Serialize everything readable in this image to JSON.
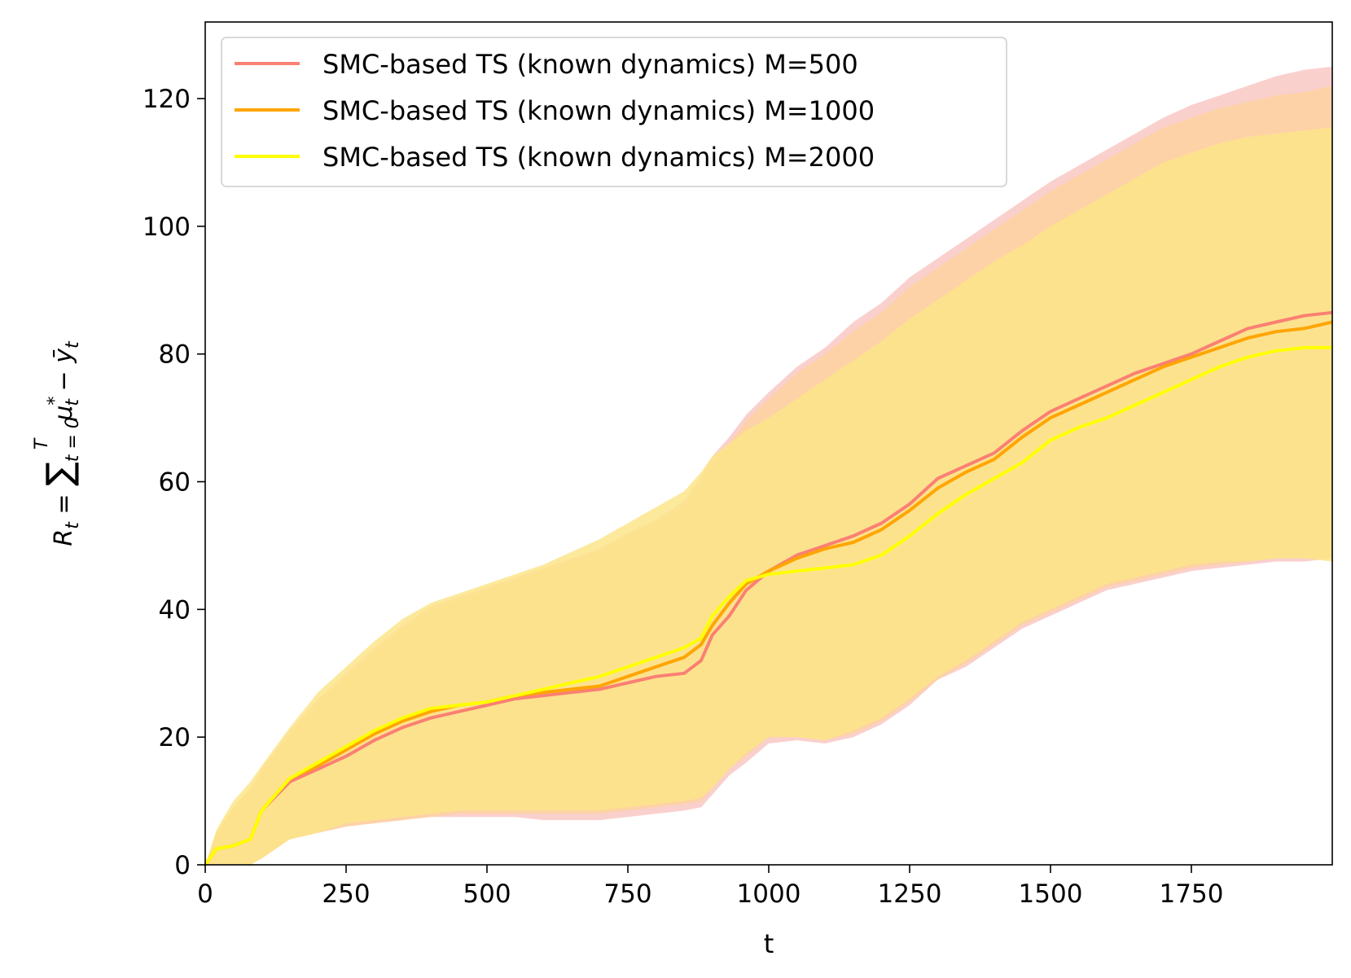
{
  "chart_data": {
    "type": "line",
    "title": "",
    "xlabel": "t",
    "ylabel": {
      "lhs": "R",
      "lhs_sub": "t",
      "eq": " = ",
      "sum": "∑",
      "sum_upper": "T",
      "sum_lower": "t = 0",
      "mu": "μ",
      "mu_sup": "*",
      "mu_sub": "t",
      "minus": " − ",
      "y": "ȳ",
      "y_sub": "t"
    },
    "xlim": [
      0,
      2000
    ],
    "ylim": [
      0,
      132
    ],
    "xticks": [
      0,
      250,
      500,
      750,
      1000,
      1250,
      1500,
      1750
    ],
    "yticks": [
      0,
      20,
      40,
      60,
      80,
      100,
      120
    ],
    "grid": false,
    "legend_position": "top-left",
    "series": [
      {
        "name": "SMC-based TS (known dynamics) M=500",
        "color": "#fa8072",
        "band_color": "#f9c8c4",
        "x": [
          0,
          20,
          50,
          80,
          100,
          150,
          200,
          250,
          300,
          350,
          400,
          450,
          500,
          550,
          600,
          650,
          700,
          750,
          800,
          850,
          880,
          900,
          930,
          960,
          1000,
          1050,
          1100,
          1150,
          1200,
          1250,
          1300,
          1350,
          1400,
          1450,
          1500,
          1550,
          1600,
          1650,
          1700,
          1750,
          1800,
          1850,
          1900,
          1950,
          2000
        ],
        "values": [
          0,
          2.5,
          3,
          4,
          8.5,
          13,
          15,
          17,
          19.5,
          21.5,
          23,
          24,
          25,
          26,
          26.5,
          27,
          27.5,
          28.5,
          29.5,
          30,
          32,
          36,
          39,
          43,
          46,
          48.5,
          50,
          51.5,
          53.5,
          56.5,
          60.5,
          62.5,
          64.5,
          68,
          71,
          73,
          75,
          77,
          78.5,
          80,
          82,
          84,
          85,
          86,
          86.5
        ],
        "lower": [
          0,
          0,
          0,
          0,
          1,
          4,
          5,
          6,
          6.5,
          7,
          7.5,
          7.5,
          7.5,
          7.5,
          7,
          7,
          7,
          7.5,
          8,
          8.5,
          9,
          11,
          14,
          16,
          19,
          19.5,
          19,
          20,
          22,
          25,
          29,
          31,
          34,
          37,
          39,
          41,
          43,
          44,
          45,
          46,
          46.5,
          47,
          47.5,
          47.5,
          48
        ],
        "upper": [
          0,
          5,
          9,
          12,
          15,
          21,
          26,
          30,
          34,
          37.5,
          40.5,
          42,
          43.5,
          45,
          46.5,
          48,
          49.5,
          52,
          54,
          57,
          61,
          64,
          67,
          70.5,
          74,
          78,
          81,
          85,
          88,
          92,
          95,
          98,
          101,
          104,
          107,
          109.5,
          112,
          114.5,
          117,
          119,
          120.5,
          122,
          123.5,
          124.5,
          125
        ]
      },
      {
        "name": "SMC-based TS (known dynamics) M=1000",
        "color": "#ffa500",
        "band_color": "#fdd2a0",
        "x": [
          0,
          20,
          50,
          80,
          100,
          150,
          200,
          250,
          300,
          350,
          400,
          450,
          500,
          550,
          600,
          650,
          700,
          750,
          800,
          850,
          880,
          900,
          930,
          960,
          1000,
          1050,
          1100,
          1150,
          1200,
          1250,
          1300,
          1350,
          1400,
          1450,
          1500,
          1550,
          1600,
          1650,
          1700,
          1750,
          1800,
          1850,
          1900,
          1950,
          2000
        ],
        "values": [
          0,
          2.5,
          3,
          4,
          8.5,
          13.5,
          15.5,
          18,
          20.5,
          22.5,
          24,
          25,
          25.5,
          26.5,
          27,
          27.5,
          28,
          29.5,
          31,
          32.5,
          34.5,
          37.5,
          41,
          44,
          46,
          48,
          49.5,
          50.5,
          52.5,
          55.5,
          59,
          61.5,
          63.5,
          67,
          70,
          72,
          74,
          76,
          78,
          79.5,
          81,
          82.5,
          83.5,
          84,
          85
        ],
        "lower": [
          0,
          0,
          0,
          0,
          1,
          4,
          5,
          6,
          6.5,
          7,
          7.5,
          8,
          8,
          8,
          8,
          8,
          8,
          8.5,
          9,
          9.5,
          10,
          12,
          15,
          17,
          20,
          20,
          19.5,
          20.5,
          22.5,
          25.5,
          29,
          31.5,
          34.5,
          37.5,
          39.5,
          41.5,
          43.5,
          44.5,
          45.5,
          46.5,
          47,
          47.5,
          48,
          48,
          48
        ],
        "upper": [
          0,
          5,
          9,
          12,
          14.5,
          20.5,
          25.5,
          29.5,
          33.5,
          37,
          40,
          41.5,
          43,
          44.5,
          46,
          47.5,
          49,
          51.5,
          53.5,
          56,
          60,
          63,
          66,
          69.5,
          73,
          77,
          80,
          83.5,
          86.5,
          90.5,
          93.5,
          96.5,
          99.5,
          102.5,
          105.5,
          108,
          110.5,
          113,
          115.5,
          117,
          118.5,
          119.5,
          120.5,
          121,
          122
        ]
      },
      {
        "name": "SMC-based TS (known dynamics) M=2000",
        "color": "#ffff00",
        "band_color": "#fde58a",
        "x": [
          0,
          20,
          50,
          80,
          100,
          150,
          200,
          250,
          300,
          350,
          400,
          450,
          500,
          550,
          600,
          650,
          700,
          750,
          800,
          850,
          880,
          900,
          930,
          960,
          1000,
          1050,
          1100,
          1150,
          1200,
          1250,
          1300,
          1350,
          1400,
          1450,
          1500,
          1550,
          1600,
          1650,
          1700,
          1750,
          1800,
          1850,
          1900,
          1950,
          2000
        ],
        "values": [
          0,
          2.5,
          3,
          4,
          8.5,
          13.5,
          16,
          18.5,
          21,
          23,
          24.5,
          25,
          25.5,
          26.5,
          27.5,
          28.5,
          29.5,
          31,
          32.5,
          34,
          35.5,
          39,
          42,
          44.5,
          45.5,
          46,
          46.5,
          47,
          48.5,
          51.5,
          55,
          58,
          60.5,
          63,
          66.5,
          68.5,
          70,
          72,
          74,
          76,
          78,
          79.5,
          80.5,
          81,
          81
        ],
        "lower": [
          0,
          0,
          0,
          0,
          1,
          4,
          5,
          6.5,
          7,
          7.5,
          8,
          8.5,
          8.5,
          8.5,
          8.5,
          8.5,
          8.5,
          9,
          9.5,
          10,
          10.5,
          12,
          15,
          17.5,
          20,
          20,
          19.5,
          21,
          23,
          26,
          29.5,
          32,
          35,
          38,
          40,
          42,
          44,
          45,
          46,
          47,
          47.5,
          47.5,
          48,
          48,
          47.5
        ],
        "upper": [
          0,
          5.5,
          10,
          13,
          15.5,
          21.5,
          27,
          31,
          35,
          38.5,
          41,
          42.5,
          44,
          45.5,
          47,
          49,
          51,
          53.5,
          56,
          58.5,
          61.5,
          64,
          66,
          68,
          70,
          73,
          76,
          79,
          82,
          85.5,
          88.5,
          91.5,
          94.5,
          97,
          100,
          102.5,
          105,
          107.5,
          110,
          111.5,
          113,
          114,
          114.5,
          115,
          115.5
        ]
      }
    ]
  }
}
